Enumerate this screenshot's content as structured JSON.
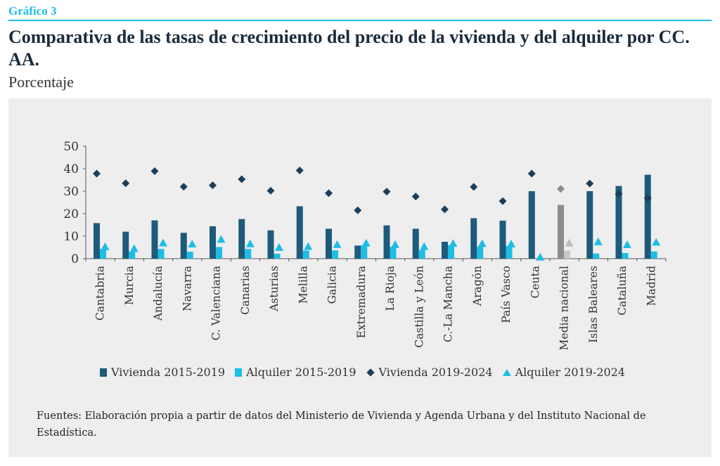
{
  "header": {
    "label": "Gráfico 3",
    "title": "Comparativa de las tasas de crecimiento del precio de la vivienda y del alquiler por CC. AA.",
    "subtitle": "Porcentaje"
  },
  "colors": {
    "accent": "#1dbde6",
    "vivienda_1519": "#1e5a7a",
    "alquiler_1519": "#1dbde6",
    "vivienda_1924": "#1a3f5c",
    "alquiler_1924": "#1dbde6",
    "media_bar": "#8c8c8c",
    "media_bar_light": "#c8c8c8",
    "media_diamond": "#8c8c8c",
    "media_tri": "#bdbdbd",
    "title_text": "#1a2b3c",
    "panel_bg": "#eeeeee"
  },
  "legend": {
    "items": [
      {
        "label": "Vivienda 2015-2019",
        "symbol": "bar",
        "color": "#1e5a7a"
      },
      {
        "label": "Alquiler 2015-2019",
        "symbol": "bar",
        "color": "#1dbde6"
      },
      {
        "label": "Vivienda 2019-2024",
        "symbol": "diamond",
        "color": "#1a3f5c"
      },
      {
        "label": "Alquiler 2019-2024",
        "symbol": "triangle",
        "color": "#1dbde6"
      }
    ]
  },
  "source": "Fuentes: Elaboración propia a partir de datos del Ministerio de Vivienda y Agenda Urbana y del Instituto Nacional de Estadística.",
  "chart_data": {
    "type": "bar",
    "title": "",
    "xlabel": "",
    "ylabel": "",
    "ylim": [
      0,
      50
    ],
    "yticks": [
      "0",
      "10",
      "20",
      "30",
      "40",
      "50"
    ],
    "grid": false,
    "legend_position": "bottom",
    "highlight_category": "Media nacional",
    "categories": [
      "Cantabria",
      "Murcia",
      "Andalucía",
      "Navarra",
      "C. Valenciana",
      "Canarias",
      "Asturias",
      "Melilla",
      "Galicia",
      "Extremadura",
      "La Rioja",
      "Castilla y León",
      "C.-La Mancha",
      "Aragón",
      "País Vasco",
      "Ceuta",
      "Media nacional",
      "Islas Baleares",
      "Cataluña",
      "Madrid"
    ],
    "series": [
      {
        "name": "Vivienda 2015-2019",
        "mark": "bar",
        "values": [
          15.8,
          12,
          17,
          11.5,
          14.4,
          17.6,
          12.6,
          23.3,
          13.3,
          5.8,
          14.8,
          13.3,
          7.5,
          18,
          16.9,
          30,
          23.9,
          30,
          32.3,
          37.3
        ]
      },
      {
        "name": "Alquiler 2015-2019",
        "mark": "bar",
        "values": [
          4.4,
          3.1,
          4.3,
          3.1,
          5.2,
          4.3,
          2.2,
          3.6,
          3.7,
          6,
          5.2,
          3.8,
          6,
          5.3,
          5.6,
          0,
          3.6,
          2.3,
          2.5,
          3.2
        ]
      },
      {
        "name": "Vivienda 2019-2024",
        "mark": "diamond",
        "values": [
          37.8,
          33.5,
          38.9,
          32,
          32.6,
          35.3,
          30.2,
          39.2,
          29.1,
          21.5,
          29.8,
          27.6,
          21.9,
          31.9,
          25.6,
          37.8,
          31,
          33.4,
          28.8,
          26.9
        ]
      },
      {
        "name": "Alquiler 2019-2024",
        "mark": "triangle",
        "values": [
          5.5,
          4.7,
          7.2,
          6.7,
          8.8,
          6.8,
          5.2,
          5.6,
          6.5,
          7.1,
          6.5,
          5.6,
          7,
          6.9,
          6.7,
          0.9,
          7.1,
          7.7,
          6.4,
          7.5
        ]
      }
    ]
  }
}
